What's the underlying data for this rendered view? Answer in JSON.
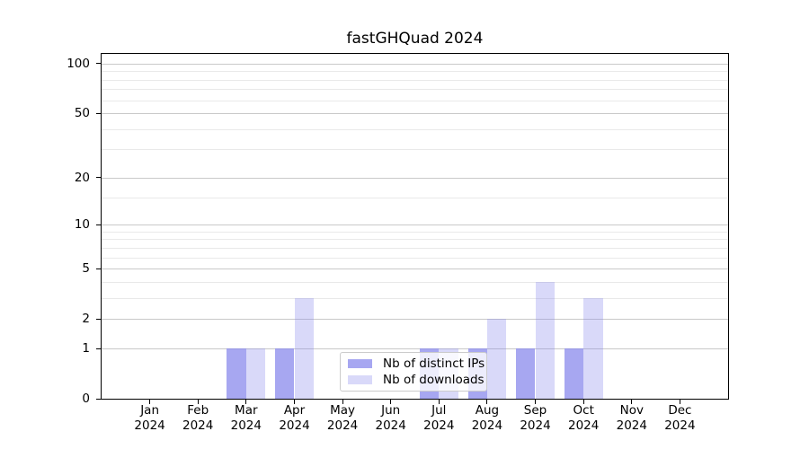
{
  "chart_data": {
    "type": "bar",
    "title": "fastGHQuad 2024",
    "categories": [
      "Jan",
      "Feb",
      "Mar",
      "Apr",
      "May",
      "Jun",
      "Jul",
      "Aug",
      "Sep",
      "Oct",
      "Nov",
      "Dec"
    ],
    "x_year": "2024",
    "series": [
      {
        "name": "Nb of distinct IPs",
        "key": "distinct-ips",
        "color": "rgba(130,130,235,0.7)",
        "values": [
          0,
          0,
          1,
          1,
          0,
          0,
          1,
          1,
          1,
          1,
          0,
          0
        ]
      },
      {
        "name": "Nb of downloads",
        "key": "downloads",
        "color": "rgba(130,130,235,0.3)",
        "values": [
          0,
          0,
          1,
          3,
          0,
          0,
          1,
          2,
          4,
          3,
          0,
          0
        ]
      }
    ],
    "y_ticks": [
      0,
      1,
      2,
      5,
      10,
      20,
      50,
      100
    ],
    "y_minor_gridlines": [
      3,
      4,
      6,
      7,
      8,
      9,
      15,
      30,
      40,
      60,
      70,
      80,
      90
    ],
    "y_scale": "log10(1+v)",
    "y_limit": 114.5,
    "grid": true,
    "legend_position": "lower center"
  }
}
